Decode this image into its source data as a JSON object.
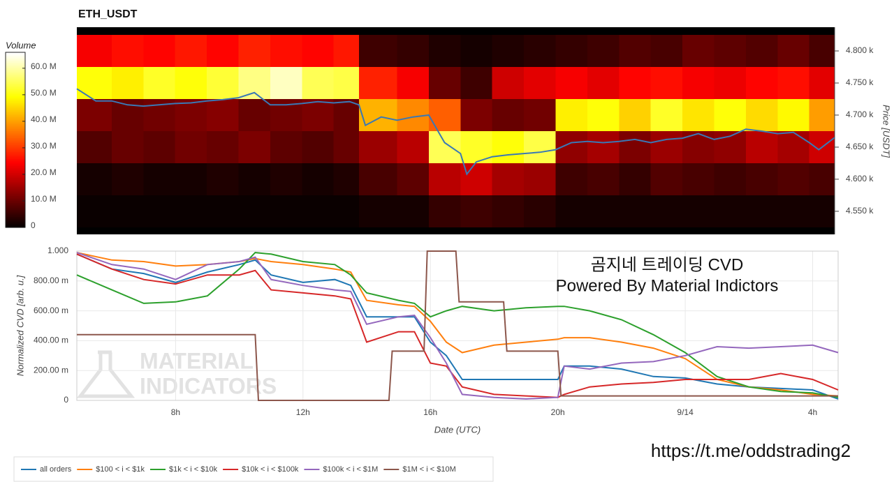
{
  "chart_data": [
    {
      "type": "heatmap",
      "title": "ETH_USDT",
      "colorbar_label": "Volume",
      "colormap": "hot",
      "zlim": [
        0,
        66000000.0
      ],
      "zticks": [
        0,
        {
          "value": 10000000.0,
          "label": "10.0 M"
        },
        {
          "value": 20000000.0,
          "label": "20.0 M"
        },
        {
          "value": 30000000.0,
          "label": "30.0 M"
        },
        {
          "value": 40000000.0,
          "label": "40.0 M"
        },
        {
          "value": 50000000.0,
          "label": "50.0 M"
        },
        {
          "value": 60000000.0,
          "label": "60.0 M"
        }
      ],
      "xlim": [
        4.9,
        28.8
      ],
      "x_bins": [
        4.9,
        6,
        7,
        8,
        9,
        10,
        11,
        12,
        13,
        13.8,
        15,
        16,
        17,
        18,
        19,
        20,
        21,
        22,
        23,
        24,
        25,
        26,
        27,
        28,
        28.8
      ],
      "y_bins": [
        4525,
        4575,
        4625,
        4675,
        4725,
        4775,
        4825
      ],
      "z": [
        [
          1000000.0,
          1000000.0,
          1000000.0,
          1000000.0,
          1000000.0,
          1000000.0,
          1000000.0,
          1000000.0,
          1000000.0,
          2000000.0,
          2000000.0,
          5000000.0,
          6000000.0,
          5000000.0,
          4000000.0,
          2000000.0,
          2000000.0,
          2000000.0,
          2000000.0,
          2000000.0,
          2000000.0,
          2000000.0,
          2000000.0,
          2000000.0
        ],
        [
          2000000.0,
          3000000.0,
          2000000.0,
          2000000.0,
          3000000.0,
          2000000.0,
          3000000.0,
          2000000.0,
          3000000.0,
          7000000.0,
          9000000.0,
          18000000.0,
          20000000.0,
          16000000.0,
          15000000.0,
          6000000.0,
          7000000.0,
          5000000.0,
          8000000.0,
          7000000.0,
          6000000.0,
          7000000.0,
          8000000.0,
          7000000.0
        ],
        [
          8000000.0,
          10000000.0,
          9000000.0,
          11000000.0,
          10000000.0,
          12000000.0,
          9000000.0,
          8000000.0,
          10000000.0,
          15000000.0,
          18000000.0,
          55000000.0,
          52000000.0,
          50000000.0,
          54000000.0,
          14000000.0,
          16000000.0,
          12000000.0,
          15000000.0,
          13000000.0,
          14000000.0,
          18000000.0,
          16000000.0,
          20000000.0
        ],
        [
          12000000.0,
          10000000.0,
          11000000.0,
          12000000.0,
          13000000.0,
          10000000.0,
          11000000.0,
          12000000.0,
          10000000.0,
          42000000.0,
          38000000.0,
          34000000.0,
          12000000.0,
          10000000.0,
          11000000.0,
          48000000.0,
          50000000.0,
          45000000.0,
          52000000.0,
          47000000.0,
          50000000.0,
          46000000.0,
          49000000.0,
          40000000.0
        ],
        [
          50000000.0,
          48000000.0,
          52000000.0,
          50000000.0,
          53000000.0,
          58000000.0,
          62000000.0,
          55000000.0,
          54000000.0,
          28000000.0,
          24000000.0,
          10000000.0,
          6000000.0,
          20000000.0,
          22000000.0,
          24000000.0,
          22000000.0,
          25000000.0,
          26000000.0,
          24000000.0,
          23000000.0,
          25000000.0,
          26000000.0,
          22000000.0
        ],
        [
          24000000.0,
          26000000.0,
          25000000.0,
          27000000.0,
          25000000.0,
          28000000.0,
          26000000.0,
          25000000.0,
          27000000.0,
          6000000.0,
          5000000.0,
          3000000.0,
          2000000.0,
          3000000.0,
          4000000.0,
          5000000.0,
          6000000.0,
          8000000.0,
          7000000.0,
          10000000.0,
          9000000.0,
          8000000.0,
          10000000.0,
          7000000.0
        ]
      ],
      "y_label": "Price [USDT]",
      "y_axis_side": "right",
      "ylim": [
        4514,
        4837
      ],
      "yticks": [
        {
          "value": 4550,
          "label": "4.550 k"
        },
        {
          "value": 4600,
          "label": "4.600 k"
        },
        {
          "value": 4650,
          "label": "4.650 k"
        },
        {
          "value": 4700,
          "label": "4.700 k"
        },
        {
          "value": 4750,
          "label": "4.750 k"
        },
        {
          "value": 4800,
          "label": "4.800 k"
        }
      ],
      "price": {
        "color": "#3a78b5",
        "x": [
          4.9,
          5.5,
          6,
          6.5,
          7,
          7.5,
          8,
          8.5,
          9,
          9.5,
          10,
          10.5,
          11,
          11.5,
          12,
          12.5,
          13,
          13.5,
          13.8,
          14,
          14.5,
          15,
          15.5,
          16,
          16.5,
          17,
          17.2,
          17.5,
          18,
          18.5,
          19,
          19.5,
          20,
          20.5,
          21,
          21.5,
          22,
          22.5,
          23,
          23.5,
          24,
          24.5,
          25,
          25.5,
          26,
          26.5,
          27,
          27.5,
          28,
          28.3,
          28.8
        ],
        "values": [
          4741,
          4722,
          4722,
          4716,
          4714,
          4716,
          4718,
          4719,
          4722,
          4724,
          4727,
          4735,
          4716,
          4716,
          4718,
          4721,
          4719,
          4721,
          4716,
          4684,
          4697,
          4692,
          4697,
          4700,
          4657,
          4640,
          4608,
          4627,
          4635,
          4638,
          4640,
          4642,
          4646,
          4657,
          4659,
          4657,
          4659,
          4662,
          4657,
          4662,
          4664,
          4671,
          4662,
          4667,
          4678,
          4675,
          4671,
          4673,
          4657,
          4646,
          4665
        ]
      }
    },
    {
      "type": "line",
      "x_label": "Date (UTC)",
      "y_label": "Normalized CVD [arb. u.]",
      "grid": true,
      "legend": "bottom",
      "xlim": [
        4.9,
        28.8
      ],
      "xticks": [
        {
          "value": 8,
          "label": "8h"
        },
        {
          "value": 12,
          "label": "12h"
        },
        {
          "value": 16,
          "label": "16h"
        },
        {
          "value": 20,
          "label": "20h"
        },
        {
          "value": 24,
          "label": "9/14"
        },
        {
          "value": 28,
          "label": "4h"
        }
      ],
      "ylim": [
        0,
        1
      ],
      "yticks": [
        0,
        {
          "value": 0.2,
          "label": "200.00 m"
        },
        {
          "value": 0.4,
          "label": "400.00 m"
        },
        {
          "value": 0.6,
          "label": "600.00 m"
        },
        {
          "value": 0.8,
          "label": "800.00 m"
        },
        {
          "value": 1,
          "label": "1.000"
        }
      ],
      "annotations": [
        "곰지네 트레이딩 CVD",
        "Powered By Material Indictors",
        "https://t.me/oddstrading2"
      ],
      "watermark": [
        "MATERIAL",
        "INDICATORS"
      ],
      "series": [
        {
          "name": "all orders",
          "color": "#1f77b4",
          "x": [
            4.9,
            6,
            7,
            8,
            9,
            10,
            10.5,
            11,
            12,
            13,
            13.5,
            14,
            15,
            15.5,
            16,
            16.5,
            17,
            18,
            19,
            20,
            20.2,
            21,
            22,
            23,
            24,
            25,
            26,
            27,
            28,
            28.8
          ],
          "values": [
            0.98,
            0.88,
            0.85,
            0.79,
            0.86,
            0.91,
            0.94,
            0.84,
            0.79,
            0.81,
            0.77,
            0.56,
            0.56,
            0.56,
            0.39,
            0.3,
            0.14,
            0.14,
            0.14,
            0.14,
            0.23,
            0.23,
            0.21,
            0.16,
            0.15,
            0.11,
            0.09,
            0.08,
            0.07,
            0.01
          ]
        },
        {
          "name": "$100 < i < $1k",
          "color": "#ff7f0e",
          "x": [
            4.9,
            6,
            7,
            8,
            9,
            10,
            10.5,
            11,
            12,
            13,
            13.5,
            14,
            15,
            15.5,
            16,
            16.5,
            17,
            18,
            19,
            20,
            20.2,
            21,
            22,
            23,
            24,
            25,
            26,
            27,
            28,
            28.8
          ],
          "values": [
            0.99,
            0.94,
            0.93,
            0.9,
            0.91,
            0.93,
            0.95,
            0.93,
            0.91,
            0.88,
            0.86,
            0.67,
            0.64,
            0.63,
            0.53,
            0.39,
            0.32,
            0.37,
            0.39,
            0.41,
            0.42,
            0.42,
            0.39,
            0.35,
            0.28,
            0.14,
            0.09,
            0.07,
            0.04,
            0.03
          ]
        },
        {
          "name": "$1k < i < $10k",
          "color": "#2ca02c",
          "x": [
            4.9,
            6,
            7,
            8,
            9,
            10,
            10.5,
            11,
            12,
            13,
            13.5,
            14,
            15,
            15.5,
            16,
            16.5,
            17,
            18,
            19,
            20,
            20.2,
            21,
            22,
            23,
            24,
            25,
            26,
            27,
            28,
            28.8
          ],
          "values": [
            0.84,
            0.74,
            0.65,
            0.66,
            0.7,
            0.88,
            0.99,
            0.98,
            0.93,
            0.91,
            0.84,
            0.72,
            0.67,
            0.65,
            0.56,
            0.6,
            0.63,
            0.6,
            0.62,
            0.63,
            0.63,
            0.6,
            0.54,
            0.44,
            0.32,
            0.16,
            0.09,
            0.06,
            0.05,
            0.02
          ]
        },
        {
          "name": "$10k < i < $100k",
          "color": "#d62728",
          "x": [
            4.9,
            6,
            7,
            8,
            9,
            10,
            10.5,
            11,
            12,
            13,
            13.5,
            14,
            15,
            15.5,
            16,
            16.5,
            17,
            18,
            19,
            20,
            20.2,
            21,
            22,
            23,
            24,
            25,
            26,
            27,
            28,
            28.8
          ],
          "values": [
            0.98,
            0.88,
            0.81,
            0.78,
            0.84,
            0.84,
            0.87,
            0.74,
            0.72,
            0.7,
            0.68,
            0.39,
            0.46,
            0.46,
            0.25,
            0.23,
            0.09,
            0.04,
            0.03,
            0.02,
            0.04,
            0.09,
            0.11,
            0.12,
            0.14,
            0.14,
            0.14,
            0.18,
            0.14,
            0.07
          ]
        },
        {
          "name": "$100k < i < $1M",
          "color": "#9467bd",
          "x": [
            4.9,
            6,
            7,
            8,
            9,
            10,
            10.5,
            11,
            12,
            13,
            13.5,
            14,
            15,
            15.5,
            16,
            16.5,
            17,
            18,
            19,
            20,
            20.2,
            21,
            22,
            23,
            24,
            25,
            26,
            27,
            28,
            28.8
          ],
          "values": [
            0.99,
            0.91,
            0.88,
            0.81,
            0.91,
            0.93,
            0.96,
            0.81,
            0.77,
            0.74,
            0.73,
            0.51,
            0.56,
            0.57,
            0.42,
            0.25,
            0.04,
            0.02,
            0.01,
            0.02,
            0.23,
            0.21,
            0.25,
            0.26,
            0.3,
            0.36,
            0.35,
            0.36,
            0.37,
            0.32
          ]
        },
        {
          "name": "$1M < i < $10M",
          "color": "#8c564b",
          "x": [
            4.9,
            10.5,
            10.6,
            14.7,
            14.8,
            15.8,
            15.9,
            16.8,
            16.9,
            18.3,
            18.4,
            20.0,
            20.1,
            28.8
          ],
          "values": [
            0.44,
            0.44,
            0,
            0,
            0.33,
            0.33,
            1,
            1,
            0.66,
            0.66,
            0.33,
            0.33,
            0.03,
            0.03
          ]
        }
      ]
    }
  ]
}
